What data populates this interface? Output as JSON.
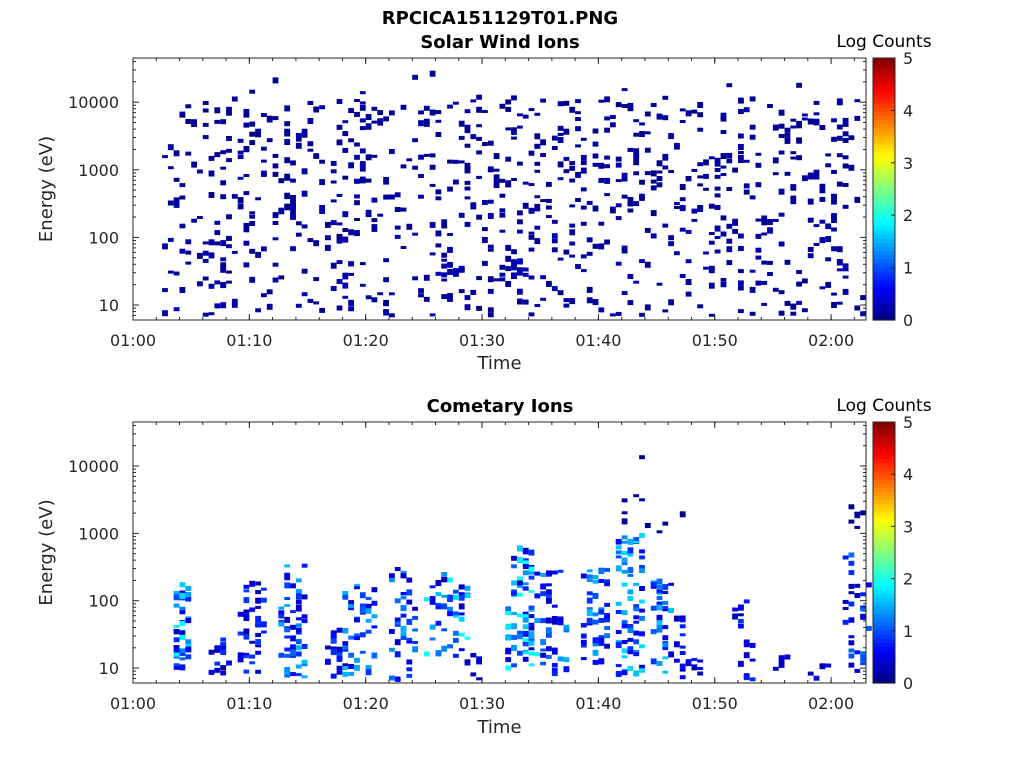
{
  "figure_title": "RPCICA151129T01.PNG",
  "chart_data": [
    {
      "type": "heatmap",
      "title": "Solar Wind Ions",
      "xlabel": "Time",
      "ylabel": "Energy (eV)",
      "x_ticks": [
        "01:00",
        "01:10",
        "01:20",
        "01:30",
        "01:40",
        "01:50",
        "02:00"
      ],
      "x_range": [
        "01:00",
        "02:03"
      ],
      "y_scale": "log",
      "y_ticks": [
        "10",
        "100",
        "1000",
        "10000"
      ],
      "y_range": [
        6,
        45000
      ],
      "colorbar": {
        "label": "Log Counts",
        "min": 0,
        "max": 5,
        "ticks": [
          "0",
          "1",
          "2",
          "3",
          "4",
          "5"
        ]
      },
      "grid": false,
      "data_start": "01:02",
      "clusters": [
        {
          "t": [
            2.5,
            62.5
          ],
          "e": [
            250,
            12000
          ],
          "n": 520,
          "v": [
            0.05,
            0.2
          ]
        },
        {
          "t": [
            2.5,
            62.5
          ],
          "e": [
            6,
            250
          ],
          "n": 380,
          "v": [
            0.05,
            0.25
          ]
        },
        {
          "t": [
            26.0,
            28.0
          ],
          "e": [
            25,
            40
          ],
          "n": 14,
          "v": [
            0.2,
            0.3
          ]
        },
        {
          "t": [
            32.0,
            34.0
          ],
          "e": [
            25,
            45
          ],
          "n": 14,
          "v": [
            0.2,
            0.3
          ]
        },
        {
          "t": [
            17.5,
            18.5
          ],
          "e": [
            10,
            45
          ],
          "n": 8,
          "v": [
            0.2,
            0.3
          ]
        },
        {
          "t": [
            3.0,
            60.0
          ],
          "e": [
            12000,
            35000
          ],
          "n": 8,
          "v": [
            0.05,
            0.1
          ]
        }
      ]
    },
    {
      "type": "heatmap",
      "title": "Cometary Ions",
      "xlabel": "Time",
      "ylabel": "Energy (eV)",
      "x_ticks": [
        "01:00",
        "01:10",
        "01:20",
        "01:30",
        "01:40",
        "01:50",
        "02:00"
      ],
      "x_range": [
        "01:00",
        "02:03"
      ],
      "y_scale": "log",
      "y_ticks": [
        "10",
        "100",
        "1000",
        "10000"
      ],
      "y_range": [
        6,
        45000
      ],
      "colorbar": {
        "label": "Log Counts",
        "min": 0,
        "max": 5,
        "ticks": [
          "0",
          "1",
          "2",
          "3",
          "4",
          "5"
        ]
      },
      "grid": false,
      "data_start": "01:03",
      "clusters": [
        {
          "t": [
            3.5,
            4.6
          ],
          "e": [
            10,
            200
          ],
          "n": 45,
          "v": [
            0.3,
            1.9
          ]
        },
        {
          "t": [
            6.5,
            8.0
          ],
          "e": [
            6,
            30
          ],
          "n": 20,
          "v": [
            0.2,
            0.9
          ]
        },
        {
          "t": [
            9.0,
            11.0
          ],
          "e": [
            8,
            180
          ],
          "n": 40,
          "v": [
            0.2,
            1.0
          ]
        },
        {
          "t": [
            12.5,
            14.5
          ],
          "e": [
            6,
            350
          ],
          "n": 60,
          "v": [
            0.3,
            1.7
          ]
        },
        {
          "t": [
            16.5,
            18.0
          ],
          "e": [
            6,
            40
          ],
          "n": 25,
          "v": [
            0.2,
            1.0
          ]
        },
        {
          "t": [
            18.0,
            20.5
          ],
          "e": [
            8,
            200
          ],
          "n": 45,
          "v": [
            0.3,
            1.6
          ]
        },
        {
          "t": [
            22.0,
            24.0
          ],
          "e": [
            6,
            300
          ],
          "n": 40,
          "v": [
            0.3,
            1.5
          ]
        },
        {
          "t": [
            25.0,
            28.5
          ],
          "e": [
            15,
            250
          ],
          "n": 50,
          "v": [
            0.3,
            2.0
          ]
        },
        {
          "t": [
            28.5,
            29.5
          ],
          "e": [
            6,
            25
          ],
          "n": 8,
          "v": [
            0.2,
            0.5
          ]
        },
        {
          "t": [
            32.0,
            34.5
          ],
          "e": [
            10,
            600
          ],
          "n": 80,
          "v": [
            0.3,
            2.0
          ]
        },
        {
          "t": [
            35.0,
            37.0
          ],
          "e": [
            8,
            300
          ],
          "n": 40,
          "v": [
            0.3,
            1.5
          ]
        },
        {
          "t": [
            38.5,
            40.5
          ],
          "e": [
            10,
            300
          ],
          "n": 50,
          "v": [
            0.3,
            1.6
          ]
        },
        {
          "t": [
            41.5,
            43.5
          ],
          "e": [
            8,
            1000
          ],
          "n": 70,
          "v": [
            0.4,
            1.8
          ]
        },
        {
          "t": [
            44.5,
            46.0
          ],
          "e": [
            8,
            200
          ],
          "n": 40,
          "v": [
            0.3,
            1.7
          ]
        },
        {
          "t": [
            46.5,
            48.5
          ],
          "e": [
            6,
            60
          ],
          "n": 20,
          "v": [
            0.2,
            0.9
          ]
        },
        {
          "t": [
            51.5,
            53.0
          ],
          "e": [
            6,
            100
          ],
          "n": 18,
          "v": [
            0.2,
            0.9
          ]
        },
        {
          "t": [
            55.0,
            56.0
          ],
          "e": [
            6,
            15
          ],
          "n": 6,
          "v": [
            0.2,
            0.6
          ]
        },
        {
          "t": [
            58.0,
            59.5
          ],
          "e": [
            6,
            12
          ],
          "n": 6,
          "v": [
            0.2,
            0.6
          ]
        },
        {
          "t": [
            61.0,
            63.0
          ],
          "e": [
            8,
            500
          ],
          "n": 30,
          "v": [
            0.2,
            1.2
          ]
        },
        {
          "t": [
            41.5,
            47.5
          ],
          "e": [
            1000,
            16000
          ],
          "n": 10,
          "v": [
            0.05,
            0.2
          ]
        },
        {
          "t": [
            61.5,
            62.5
          ],
          "e": [
            1000,
            2500
          ],
          "n": 6,
          "v": [
            0.05,
            0.2
          ]
        }
      ]
    }
  ]
}
